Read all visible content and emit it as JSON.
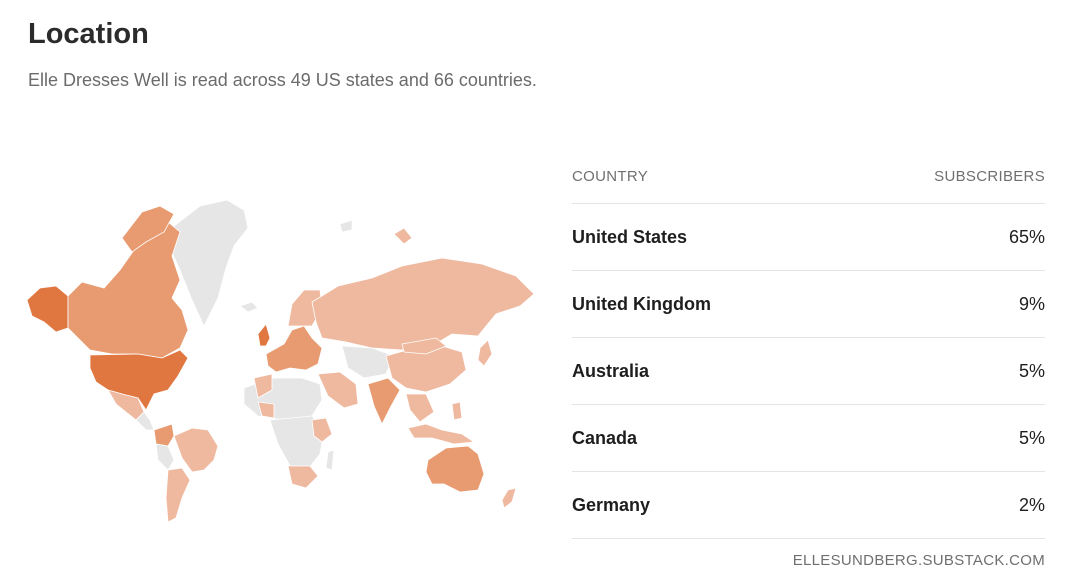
{
  "header": {
    "title": "Location",
    "subtitle": "Elle Dresses Well is read across 49 US states and 66 countries."
  },
  "colors": {
    "top": "#e07640",
    "high": "#e89a70",
    "mid": "#efb9a0",
    "none": "#e6e6e6"
  },
  "table": {
    "country_header": "COUNTRY",
    "subscribers_header": "SUBSCRIBERS",
    "rows": [
      {
        "country": "United States",
        "share": "65%"
      },
      {
        "country": "United Kingdom",
        "share": "9%"
      },
      {
        "country": "Australia",
        "share": "5%"
      },
      {
        "country": "Canada",
        "share": "5%"
      },
      {
        "country": "Germany",
        "share": "2%"
      }
    ]
  },
  "footer": {
    "source": "ELLESUNDBERG.SUBSTACK.COM"
  }
}
